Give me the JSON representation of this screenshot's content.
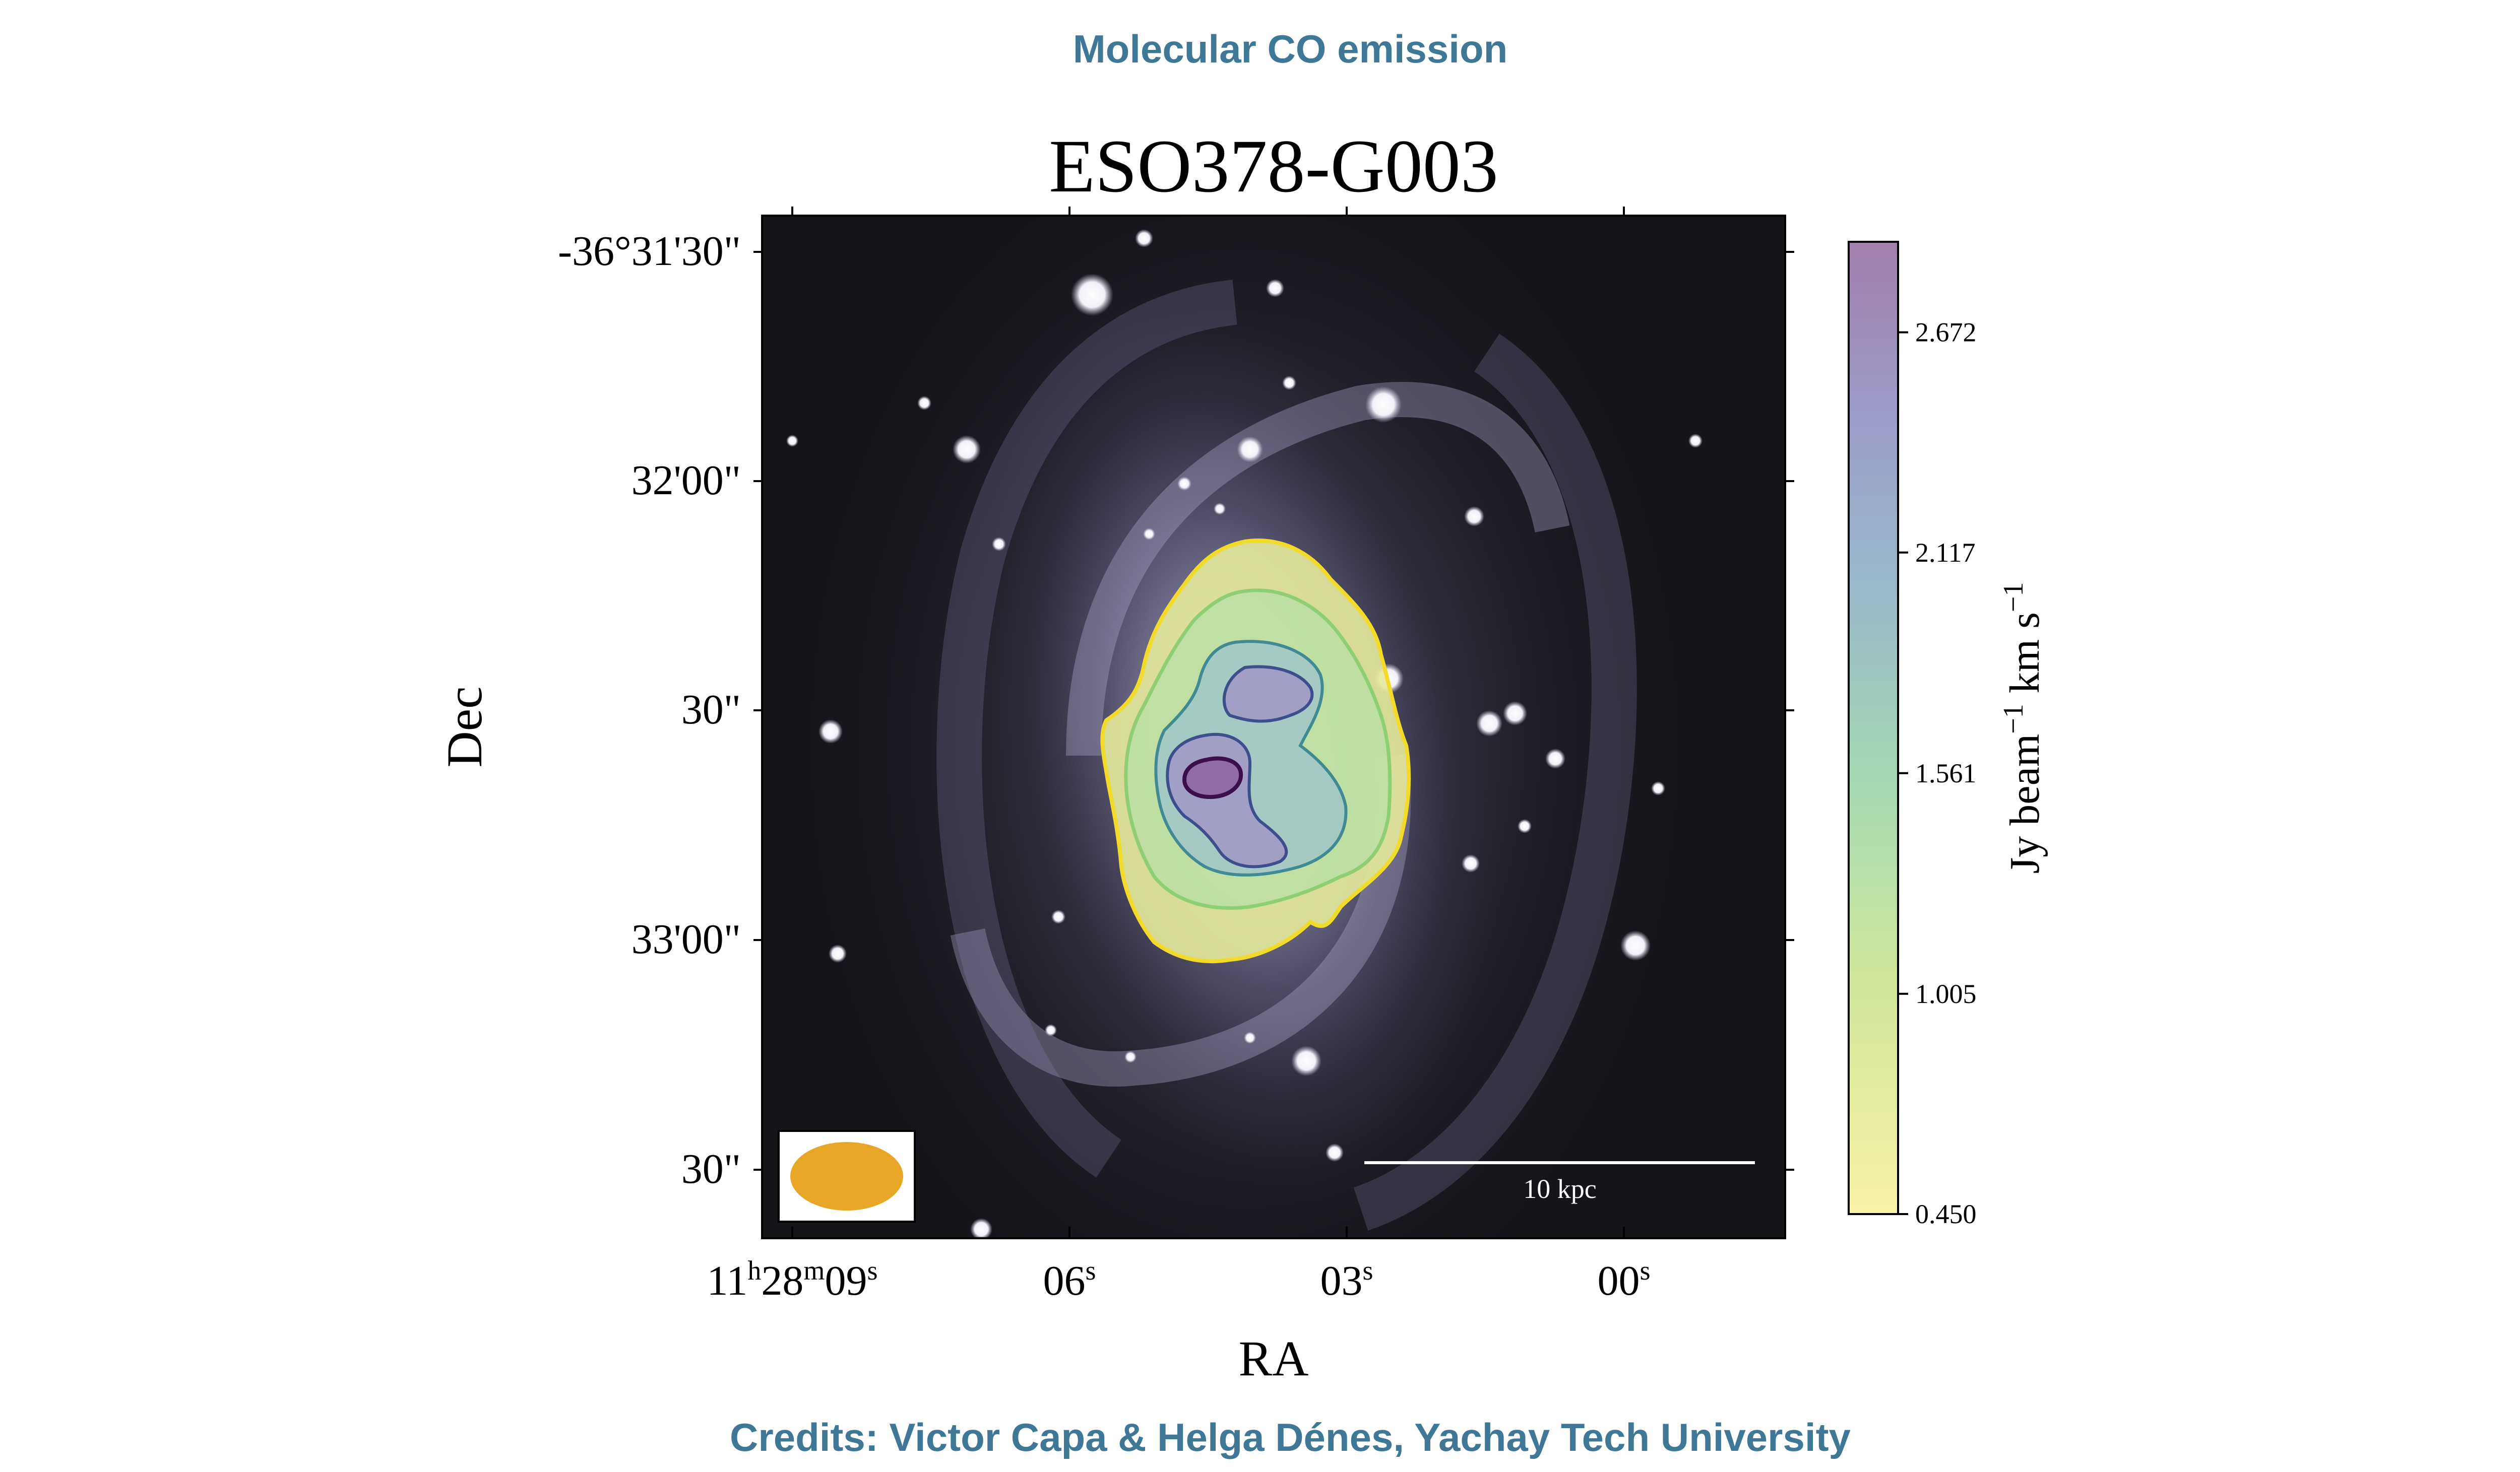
{
  "header": {
    "banner": "Molecular CO emission"
  },
  "footer": {
    "credits": "Credits: Victor Capa & Helga Dénes, Yachay Tech University"
  },
  "chart_data": {
    "type": "heatmap",
    "title": "ESO378-G003",
    "xlabel": "RA",
    "ylabel": "Dec",
    "x_ticks": [
      {
        "h": "11",
        "m": "28",
        "s": "09",
        "label": "11h28m09s"
      },
      {
        "s": "06",
        "label": "06s"
      },
      {
        "s": "03",
        "label": "03s"
      },
      {
        "s": "00",
        "label": "00s"
      }
    ],
    "y_ticks": [
      "-36°31'30\"",
      "32'00\"",
      "30\"",
      "33'00\"",
      "30\""
    ],
    "colorbar": {
      "label_main": "Jy beam",
      "label_exp1": "−1",
      "label_mid": " km s",
      "label_exp2": "−1",
      "colormap": "viridis_r",
      "vmin": 0.45,
      "vmax": 2.9,
      "ticks": [
        {
          "value": 0.45,
          "label": "0.450"
        },
        {
          "value": 1.005,
          "label": "1.005"
        },
        {
          "value": 1.561,
          "label": "1.561"
        },
        {
          "value": 2.117,
          "label": "2.117"
        },
        {
          "value": 2.672,
          "label": "2.672"
        }
      ]
    },
    "contour_levels": [
      0.45,
      1.005,
      1.561,
      2.117,
      2.672
    ],
    "scale_bar": {
      "label": "10 kpc"
    },
    "beam": {
      "color": "#e8a626"
    },
    "background_image": "optical galaxy image, grayscale with lavender tint",
    "grid": false
  }
}
